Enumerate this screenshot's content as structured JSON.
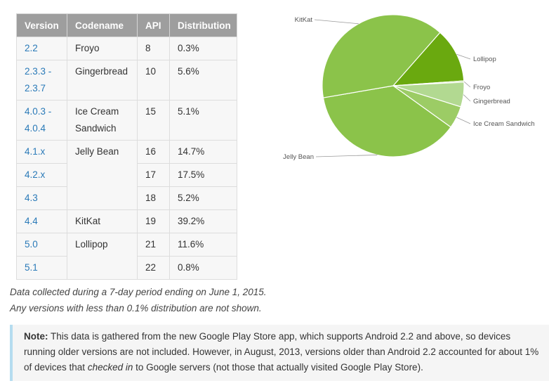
{
  "table": {
    "headers": [
      "Version",
      "Codename",
      "API",
      "Distribution"
    ],
    "rows": [
      {
        "version": "2.2",
        "codename": "Froyo",
        "api": "8",
        "distribution": "0.3%"
      },
      {
        "version": "2.3.3 - 2.3.7",
        "codename": "Gingerbread",
        "api": "10",
        "distribution": "5.6%"
      },
      {
        "version": "4.0.3 - 4.0.4",
        "codename": "Ice Cream Sandwich",
        "api": "15",
        "distribution": "5.1%"
      },
      {
        "version": "4.1.x",
        "codename": "Jelly Bean",
        "api": "16",
        "distribution": "14.7%"
      },
      {
        "version": "4.2.x",
        "codename": "",
        "api": "17",
        "distribution": "17.5%"
      },
      {
        "version": "4.3",
        "codename": "",
        "api": "18",
        "distribution": "5.2%"
      },
      {
        "version": "4.4",
        "codename": "KitKat",
        "api": "19",
        "distribution": "39.2%"
      },
      {
        "version": "5.0",
        "codename": "Lollipop",
        "api": "21",
        "distribution": "11.6%"
      },
      {
        "version": "5.1",
        "codename": "",
        "api": "22",
        "distribution": "0.8%"
      }
    ]
  },
  "notes": {
    "line1": "Data collected during a 7-day period ending on June 1, 2015.",
    "line2": "Any versions with less than 0.1% distribution are not shown."
  },
  "note_box": {
    "label": "Note:",
    "text_before": " This data is gathered from the new Google Play Store app, which supports Android 2.2 and above, so devices running older versions are not included. However, in August, 2013, versions older than Android 2.2 accounted for about 1% of devices that ",
    "emphasis": "checked in",
    "text_after": " to Google servers (not those that actually visited Google Play Store)."
  },
  "chart_data": {
    "type": "pie",
    "slices": [
      {
        "label": "Lollipop",
        "value": 12.4,
        "color": "#6aa90f"
      },
      {
        "label": "Froyo",
        "value": 0.3,
        "color": "#a9d47a"
      },
      {
        "label": "Gingerbread",
        "value": 5.6,
        "color": "#b2d991"
      },
      {
        "label": "Ice Cream Sandwich",
        "value": 5.1,
        "color": "#9ccc65"
      },
      {
        "label": "Jelly Bean",
        "value": 37.4,
        "color": "#8bc34a"
      },
      {
        "label": "KitKat",
        "value": 39.2,
        "color": "#8bc34a"
      }
    ],
    "start": "top-right quadrant, clockwise",
    "legend": "leader-line labels"
  }
}
